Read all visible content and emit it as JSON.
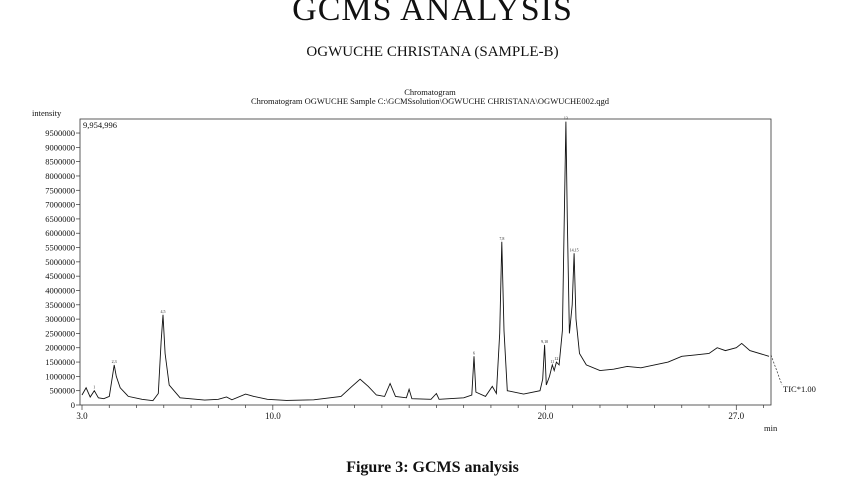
{
  "header": {
    "title": "GCMS ANALYSIS",
    "subtitle": "OGWUCHE CHRISTANA (SAMPLE-B)"
  },
  "caption": "Figure 3: GCMS analysis",
  "chart_data": {
    "type": "line",
    "title": "Chromatogram",
    "subtitle": "Chromatogram OGWUCHE Sample C:\\GCMSsolution\\OGWUCHE CHRISTANA\\OGWUCHE002.qgd",
    "ylabel": "intensity",
    "xunit": "min",
    "max_label": "9,954,996",
    "trace_label": "TIC*1.00",
    "xlim": [
      3.0,
      28.2
    ],
    "ylim": [
      0,
      9954996
    ],
    "x_ticks": [
      {
        "value": 3.0,
        "label": "3.0"
      },
      {
        "value": 10.0,
        "label": "10.0"
      },
      {
        "value": 20.0,
        "label": "20.0"
      },
      {
        "value": 27.0,
        "label": "27.0"
      }
    ],
    "y_ticks": [
      {
        "value": 0,
        "label": "0"
      },
      {
        "value": 500000,
        "label": "500000"
      },
      {
        "value": 1000000,
        "label": "1000000"
      },
      {
        "value": 1500000,
        "label": "1500000"
      },
      {
        "value": 2000000,
        "label": "2000000"
      },
      {
        "value": 2500000,
        "label": "2500000"
      },
      {
        "value": 3000000,
        "label": "3000000"
      },
      {
        "value": 3500000,
        "label": "3500000"
      },
      {
        "value": 4000000,
        "label": "4000000"
      },
      {
        "value": 4500000,
        "label": "4500000"
      },
      {
        "value": 5000000,
        "label": "5000000"
      },
      {
        "value": 5500000,
        "label": "5500000"
      },
      {
        "value": 6000000,
        "label": "6000000"
      },
      {
        "value": 6500000,
        "label": "6500000"
      },
      {
        "value": 7000000,
        "label": "7000000"
      },
      {
        "value": 7500000,
        "label": "7500000"
      },
      {
        "value": 8000000,
        "label": "8000000"
      },
      {
        "value": 8500000,
        "label": "8500000"
      },
      {
        "value": 9000000,
        "label": "9000000"
      },
      {
        "value": 9500000,
        "label": "9500000"
      }
    ],
    "series": [
      {
        "color": "#111111",
        "points": [
          [
            3.0,
            350000
          ],
          [
            3.15,
            600000
          ],
          [
            3.3,
            280000
          ],
          [
            3.45,
            500000
          ],
          [
            3.6,
            250000
          ],
          [
            3.8,
            220000
          ],
          [
            4.0,
            300000
          ],
          [
            4.1,
            900000
          ],
          [
            4.18,
            1400000
          ],
          [
            4.26,
            1000000
          ],
          [
            4.4,
            600000
          ],
          [
            4.7,
            300000
          ],
          [
            5.2,
            200000
          ],
          [
            5.6,
            150000
          ],
          [
            5.8,
            400000
          ],
          [
            5.9,
            2200000
          ],
          [
            5.97,
            3150000
          ],
          [
            6.05,
            1800000
          ],
          [
            6.2,
            700000
          ],
          [
            6.6,
            250000
          ],
          [
            7.5,
            170000
          ],
          [
            8.0,
            200000
          ],
          [
            8.3,
            280000
          ],
          [
            8.5,
            180000
          ],
          [
            9.0,
            380000
          ],
          [
            9.3,
            300000
          ],
          [
            9.8,
            200000
          ],
          [
            10.5,
            160000
          ],
          [
            11.5,
            180000
          ],
          [
            12.5,
            300000
          ],
          [
            12.9,
            650000
          ],
          [
            13.2,
            900000
          ],
          [
            13.5,
            650000
          ],
          [
            13.8,
            350000
          ],
          [
            14.1,
            300000
          ],
          [
            14.3,
            750000
          ],
          [
            14.5,
            300000
          ],
          [
            14.9,
            250000
          ],
          [
            15.0,
            550000
          ],
          [
            15.1,
            220000
          ],
          [
            15.8,
            200000
          ],
          [
            16.0,
            400000
          ],
          [
            16.1,
            200000
          ],
          [
            17.0,
            250000
          ],
          [
            17.3,
            350000
          ],
          [
            17.38,
            1700000
          ],
          [
            17.45,
            450000
          ],
          [
            17.8,
            300000
          ],
          [
            18.05,
            650000
          ],
          [
            18.2,
            400000
          ],
          [
            18.32,
            2500000
          ],
          [
            18.4,
            5700000
          ],
          [
            18.48,
            2600000
          ],
          [
            18.6,
            500000
          ],
          [
            19.2,
            380000
          ],
          [
            19.8,
            500000
          ],
          [
            19.9,
            900000
          ],
          [
            19.97,
            2100000
          ],
          [
            20.03,
            700000
          ],
          [
            20.15,
            1000000
          ],
          [
            20.25,
            1400000
          ],
          [
            20.32,
            1200000
          ],
          [
            20.4,
            1500000
          ],
          [
            20.5,
            1400000
          ],
          [
            20.62,
            2600000
          ],
          [
            20.7,
            7000000
          ],
          [
            20.75,
            9900000
          ],
          [
            20.8,
            6500000
          ],
          [
            20.88,
            2500000
          ],
          [
            20.98,
            3500000
          ],
          [
            21.05,
            5300000
          ],
          [
            21.12,
            3000000
          ],
          [
            21.25,
            1800000
          ],
          [
            21.5,
            1400000
          ],
          [
            22.0,
            1200000
          ],
          [
            22.5,
            1250000
          ],
          [
            23.0,
            1350000
          ],
          [
            23.5,
            1300000
          ],
          [
            24.0,
            1400000
          ],
          [
            24.5,
            1500000
          ],
          [
            25.0,
            1700000
          ],
          [
            25.5,
            1750000
          ],
          [
            26.0,
            1800000
          ],
          [
            26.3,
            2000000
          ],
          [
            26.6,
            1900000
          ],
          [
            27.0,
            2000000
          ],
          [
            27.2,
            2150000
          ],
          [
            27.5,
            1900000
          ],
          [
            28.2,
            1700000
          ]
        ]
      }
    ],
    "peak_labels": [
      {
        "x": 3.45,
        "y": 500000,
        "text": "1"
      },
      {
        "x": 4.18,
        "y": 1400000,
        "text": "2,3"
      },
      {
        "x": 5.97,
        "y": 3150000,
        "text": "4,5"
      },
      {
        "x": 17.38,
        "y": 1700000,
        "text": "6"
      },
      {
        "x": 18.4,
        "y": 5700000,
        "text": "7,8"
      },
      {
        "x": 19.97,
        "y": 2100000,
        "text": "9,10"
      },
      {
        "x": 20.25,
        "y": 1400000,
        "text": "11"
      },
      {
        "x": 20.4,
        "y": 1500000,
        "text": "12"
      },
      {
        "x": 20.75,
        "y": 9900000,
        "text": "13"
      },
      {
        "x": 21.05,
        "y": 5300000,
        "text": "14,15"
      }
    ]
  }
}
